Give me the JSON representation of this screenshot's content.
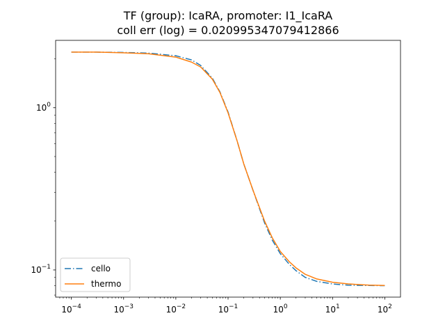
{
  "chart_data": {
    "type": "line",
    "title_line1": "TF (group): IcaRA, promoter: I1_IcaRA",
    "title_line2": "coll err (log) = 0.020995347079412866",
    "xlabel": "",
    "ylabel": "",
    "xscale": "log",
    "yscale": "log",
    "xlim": [
      5e-05,
      200
    ],
    "ylim": [
      0.068,
      2.6
    ],
    "x_ticks": [
      {
        "value": 0.0001,
        "mantissa": "10",
        "exp": "−4"
      },
      {
        "value": 0.001,
        "mantissa": "10",
        "exp": "−3"
      },
      {
        "value": 0.01,
        "mantissa": "10",
        "exp": "−2"
      },
      {
        "value": 0.1,
        "mantissa": "10",
        "exp": "−1"
      },
      {
        "value": 1,
        "mantissa": "10",
        "exp": "0"
      },
      {
        "value": 10,
        "mantissa": "10",
        "exp": "1"
      },
      {
        "value": 100,
        "mantissa": "10",
        "exp": "2"
      }
    ],
    "y_ticks": [
      {
        "value": 0.1,
        "mantissa": "10",
        "exp": "−1"
      },
      {
        "value": 1,
        "mantissa": "10",
        "exp": "0"
      }
    ],
    "legend_position": "lower-left",
    "grid": false,
    "series": [
      {
        "name": "cello",
        "color": "#1f77b4",
        "style": "dashdot",
        "x": [
          0.0001,
          0.0003,
          0.001,
          0.003,
          0.01,
          0.02,
          0.03,
          0.05,
          0.07,
          0.1,
          0.15,
          0.2,
          0.3,
          0.5,
          0.7,
          1,
          1.5,
          2,
          3,
          5,
          10,
          20,
          50,
          100
        ],
        "y": [
          2.2,
          2.2,
          2.19,
          2.17,
          2.09,
          1.97,
          1.82,
          1.52,
          1.25,
          0.94,
          0.62,
          0.45,
          0.31,
          0.195,
          0.153,
          0.126,
          0.108,
          0.099,
          0.09,
          0.085,
          0.082,
          0.0805,
          0.0802,
          0.08
        ]
      },
      {
        "name": "thermo",
        "color": "#ff7f0e",
        "style": "solid",
        "x": [
          0.0001,
          0.0003,
          0.001,
          0.003,
          0.01,
          0.02,
          0.03,
          0.05,
          0.07,
          0.1,
          0.15,
          0.2,
          0.3,
          0.5,
          0.7,
          1,
          1.5,
          2,
          3,
          5,
          10,
          20,
          50,
          100
        ],
        "y": [
          2.2,
          2.2,
          2.18,
          2.15,
          2.05,
          1.91,
          1.78,
          1.5,
          1.24,
          0.93,
          0.62,
          0.45,
          0.31,
          0.2,
          0.158,
          0.13,
          0.112,
          0.103,
          0.094,
          0.088,
          0.084,
          0.082,
          0.0806,
          0.0802
        ]
      }
    ]
  }
}
